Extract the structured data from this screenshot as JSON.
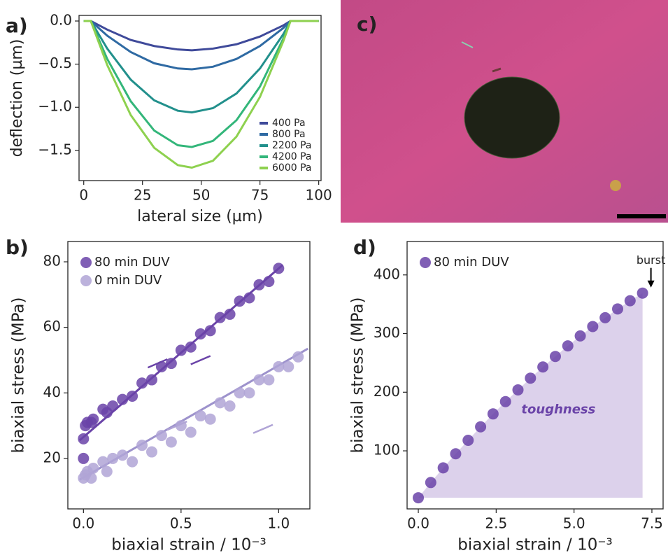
{
  "chart_data": [
    {
      "type": "line",
      "label": "a)",
      "xlabel": "lateral size (µm)",
      "ylabel": "deflection (µm)",
      "xlim": [
        -2,
        101
      ],
      "ylim": [
        -1.85,
        0.065
      ],
      "xticks": [
        0,
        25,
        50,
        75,
        100
      ],
      "yticks": [
        {
          "value": 0,
          "label": "0.0"
        },
        {
          "value": -0.5,
          "label": "−0.5"
        },
        {
          "value": -1,
          "label": "−1.0"
        },
        {
          "value": -1.5,
          "label": "−1.5"
        }
      ],
      "legend": "lower right",
      "x": [
        0,
        3,
        10,
        20,
        30,
        40,
        46,
        55,
        65,
        75,
        85,
        88,
        100
      ],
      "series": [
        {
          "name": "400 Pa",
          "color": "#3f4a9a",
          "values": [
            0,
            0,
            -0.1,
            -0.22,
            -0.29,
            -0.33,
            -0.34,
            -0.32,
            -0.27,
            -0.18,
            -0.05,
            0,
            0
          ]
        },
        {
          "name": "800 Pa",
          "color": "#2f6aa3",
          "values": [
            0,
            0,
            -0.17,
            -0.36,
            -0.49,
            -0.55,
            -0.56,
            -0.53,
            -0.44,
            -0.29,
            -0.08,
            0,
            0
          ]
        },
        {
          "name": "2200 Pa",
          "color": "#22908c",
          "values": [
            0,
            0,
            -0.32,
            -0.68,
            -0.92,
            -1.04,
            -1.06,
            -1.01,
            -0.84,
            -0.55,
            -0.15,
            0,
            0
          ]
        },
        {
          "name": "4200 Pa",
          "color": "#33b67a",
          "values": [
            0,
            0,
            -0.44,
            -0.93,
            -1.27,
            -1.44,
            -1.46,
            -1.39,
            -1.15,
            -0.76,
            -0.2,
            0,
            0
          ]
        },
        {
          "name": "6000 Pa",
          "color": "#8ed14f",
          "values": [
            0,
            0,
            -0.51,
            -1.09,
            -1.47,
            -1.67,
            -1.7,
            -1.62,
            -1.34,
            -0.88,
            -0.23,
            0,
            0
          ]
        }
      ]
    },
    {
      "type": "scatter",
      "label": "b)",
      "xlabel": "biaxial strain / 10⁻³",
      "ylabel": "biaxial stress (MPa)",
      "xlim": [
        -0.08,
        1.16
      ],
      "ylim": [
        4.6,
        86.2
      ],
      "xticks": [
        {
          "value": 0,
          "label": "0.0"
        },
        {
          "value": 0.5,
          "label": "0.5"
        },
        {
          "value": 1,
          "label": "1.0"
        }
      ],
      "yticks": [
        20,
        40,
        60,
        80
      ],
      "legend": "upper left",
      "series": [
        {
          "name": "80 min DUV",
          "color": "#6a43a8",
          "x": [
            0,
            0,
            0.01,
            0.02,
            0.05,
            0.1,
            0.15,
            0.2,
            0.3,
            0.4,
            0.5,
            0.6,
            0.7,
            0.8,
            0.9,
            1.0,
            0.95,
            0.85,
            0.75,
            0.65,
            0.55,
            0.45,
            0.35,
            0.25,
            0.12,
            0.04
          ],
          "values": [
            20,
            26,
            30,
            31,
            32,
            35,
            36,
            38,
            43,
            48,
            53,
            58,
            63,
            68,
            73,
            78,
            74,
            69,
            64,
            59,
            54,
            49,
            44,
            39,
            34,
            31
          ]
        },
        {
          "name": "0 min DUV",
          "color": "#b0a4d6",
          "x": [
            0,
            0.01,
            0.02,
            0.05,
            0.1,
            0.15,
            0.2,
            0.3,
            0.4,
            0.5,
            0.6,
            0.7,
            0.8,
            0.9,
            1.0,
            1.1,
            1.05,
            0.95,
            0.85,
            0.75,
            0.65,
            0.55,
            0.45,
            0.35,
            0.25,
            0.12,
            0.04
          ],
          "values": [
            14,
            15,
            16,
            17,
            19,
            20,
            21,
            24,
            27,
            30,
            33,
            37,
            40,
            44,
            48,
            51,
            48,
            44,
            40,
            36,
            32,
            28,
            25,
            22,
            19,
            16,
            14
          ]
        }
      ],
      "fits": [
        {
          "color": "#6a43a8",
          "x": [
            -0.02,
            1.02
          ],
          "values": [
            25.5,
            79
          ]
        },
        {
          "color": "#9d92cc",
          "x": [
            -0.02,
            1.15
          ],
          "values": [
            13.5,
            53.5
          ]
        }
      ]
    },
    {
      "type": "scatter",
      "label": "d)",
      "xlabel": "biaxial strain / 10⁻³",
      "ylabel": "biaxial stress (MPa)",
      "xlim": [
        -0.36,
        7.86
      ],
      "ylim": [
        1,
        457
      ],
      "xticks": [
        {
          "value": 0,
          "label": "0.0"
        },
        {
          "value": 2.5,
          "label": "2.5"
        },
        {
          "value": 5,
          "label": "5.0"
        },
        {
          "value": 7.5,
          "label": "7.5"
        }
      ],
      "yticks": [
        100,
        200,
        300,
        400
      ],
      "legend": "upper left",
      "area": true,
      "annotations": [
        "burst",
        "toughness"
      ],
      "series": [
        {
          "name": "80 min DUV",
          "color": "#6a43a8",
          "x": [
            0,
            0.4,
            0.8,
            1.2,
            1.6,
            2.0,
            2.4,
            2.8,
            3.2,
            3.6,
            4.0,
            4.4,
            4.8,
            5.2,
            5.6,
            6.0,
            6.4,
            6.8,
            7.2
          ],
          "values": [
            20,
            46,
            71,
            95,
            118,
            141,
            163,
            184,
            204,
            224,
            243,
            261,
            279,
            296,
            312,
            327,
            342,
            356,
            369
          ]
        }
      ]
    }
  ],
  "image": {
    "label": "c)"
  }
}
